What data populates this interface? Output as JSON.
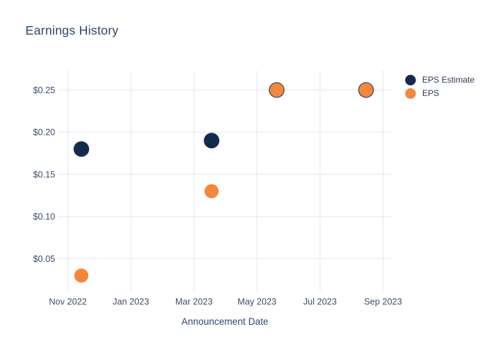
{
  "title": "Earnings History",
  "colors": {
    "eps_estimate": "#142a4c",
    "eps": "#f4873e",
    "grid": "#e8ecf4",
    "title_text": "#2f4568",
    "tick_text": "#3e4c6a",
    "background": "#ffffff"
  },
  "legend": {
    "items": [
      {
        "label": "EPS Estimate",
        "color": "#142a4c"
      },
      {
        "label": "EPS",
        "color": "#f4873e"
      }
    ]
  },
  "chart_data": {
    "type": "scatter",
    "title": "Earnings History",
    "xlabel": "Announcement Date",
    "ylabel": "",
    "grid": true,
    "legend_position": "right",
    "x_ticks": [
      {
        "label": "Nov 2022",
        "date": "2022-11-01"
      },
      {
        "label": "Jan 2023",
        "date": "2023-01-01"
      },
      {
        "label": "Mar 2023",
        "date": "2023-03-01"
      },
      {
        "label": "May 2023",
        "date": "2023-05-01"
      },
      {
        "label": "Jul 2023",
        "date": "2023-07-01"
      },
      {
        "label": "Sep 2023",
        "date": "2023-09-01"
      }
    ],
    "y_ticks": [
      {
        "label": "$0.05",
        "value": 0.05
      },
      {
        "label": "$0.10",
        "value": 0.1
      },
      {
        "label": "$0.15",
        "value": 0.15
      },
      {
        "label": "$0.20",
        "value": 0.2
      },
      {
        "label": "$0.25",
        "value": 0.25
      }
    ],
    "ylim": [
      0.011,
      0.273
    ],
    "series": [
      {
        "name": "EPS Estimate",
        "color": "#142a4c",
        "points": [
          {
            "x": "2022-11-14",
            "y": 0.18
          },
          {
            "x": "2023-03-18",
            "y": 0.19
          },
          {
            "x": "2023-05-20",
            "y": 0.25
          },
          {
            "x": "2023-08-15",
            "y": 0.25
          }
        ]
      },
      {
        "name": "EPS",
        "color": "#f4873e",
        "points": [
          {
            "x": "2022-11-14",
            "y": 0.03
          },
          {
            "x": "2023-03-18",
            "y": 0.13
          },
          {
            "x": "2023-05-20",
            "y": 0.25
          },
          {
            "x": "2023-08-15",
            "y": 0.25
          }
        ]
      }
    ]
  }
}
